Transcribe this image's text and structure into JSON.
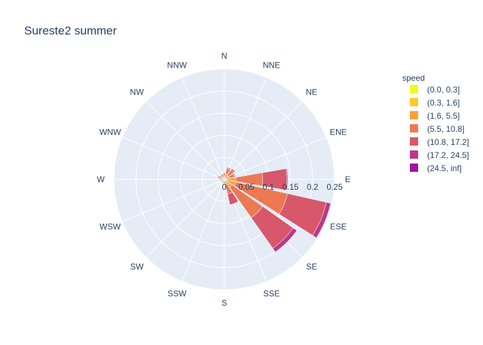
{
  "chart_data": {
    "type": "barpolar",
    "title": "Sureste2 summer",
    "directions": [
      "N",
      "NNE",
      "NE",
      "ENE",
      "E",
      "ESE",
      "SE",
      "SSE",
      "S",
      "SSW",
      "SW",
      "WSW",
      "W",
      "WNW",
      "NW",
      "NNW"
    ],
    "radial_axis": {
      "range": [
        0,
        0.25
      ],
      "ticks": [
        "0",
        "0.05",
        "0.1",
        "0.15",
        "0.2",
        "0.25"
      ],
      "tick_values": [
        0,
        0.05,
        0.1,
        0.15,
        0.2,
        0.25
      ],
      "angle_deg": 0
    },
    "legend": {
      "title": "speed",
      "placement": "right"
    },
    "series": [
      {
        "name": "(0.0, 0.3]",
        "color": "#f0f921",
        "values": [
          0.001,
          0.001,
          0.001,
          0.001,
          0.002,
          0.002,
          0.002,
          0.001,
          0.001,
          0.001,
          0.001,
          0.001,
          0.001,
          0.001,
          0.001,
          0.001
        ]
      },
      {
        "name": "(0.3, 1.6]",
        "color": "#fdca26",
        "values": [
          0.002,
          0.003,
          0.003,
          0.003,
          0.005,
          0.005,
          0.004,
          0.003,
          0.002,
          0.002,
          0.002,
          0.002,
          0.003,
          0.003,
          0.002,
          0.002
        ]
      },
      {
        "name": "(1.6, 5.5]",
        "color": "#fb9f3a",
        "values": [
          0.005,
          0.009,
          0.007,
          0.008,
          0.02,
          0.02,
          0.015,
          0.008,
          0.005,
          0.004,
          0.004,
          0.004,
          0.005,
          0.006,
          0.005,
          0.005
        ]
      },
      {
        "name": "(5.5, 10.8]",
        "color": "#ed7953",
        "values": [
          0.006,
          0.013,
          0.016,
          0.012,
          0.06,
          0.12,
          0.085,
          0.022,
          0.002,
          0.001,
          0.001,
          0.001,
          0.002,
          0.005,
          0.004,
          0.004
        ]
      },
      {
        "name": "(10.8, 17.2]",
        "color": "#d8576b",
        "values": [
          0.001,
          0.002,
          0.003,
          0.002,
          0.055,
          0.09,
          0.085,
          0.025,
          0,
          0,
          0,
          0,
          0,
          0,
          0,
          0
        ]
      },
      {
        "name": "(17.2, 24.5]",
        "color": "#bd3786",
        "values": [
          0,
          0,
          0,
          0,
          0.002,
          0.01,
          0.01,
          0.001,
          0,
          0,
          0,
          0,
          0,
          0,
          0,
          0
        ]
      },
      {
        "name": "(24.5, inf]",
        "color": "#9c179e",
        "values": [
          0,
          0,
          0,
          0,
          0,
          0,
          0,
          0,
          0,
          0,
          0,
          0,
          0,
          0,
          0,
          0
        ]
      }
    ],
    "colors": {
      "polar_bg": "#e5ecf6",
      "grid": "#ffffff",
      "text": "#2a3f5f"
    }
  }
}
